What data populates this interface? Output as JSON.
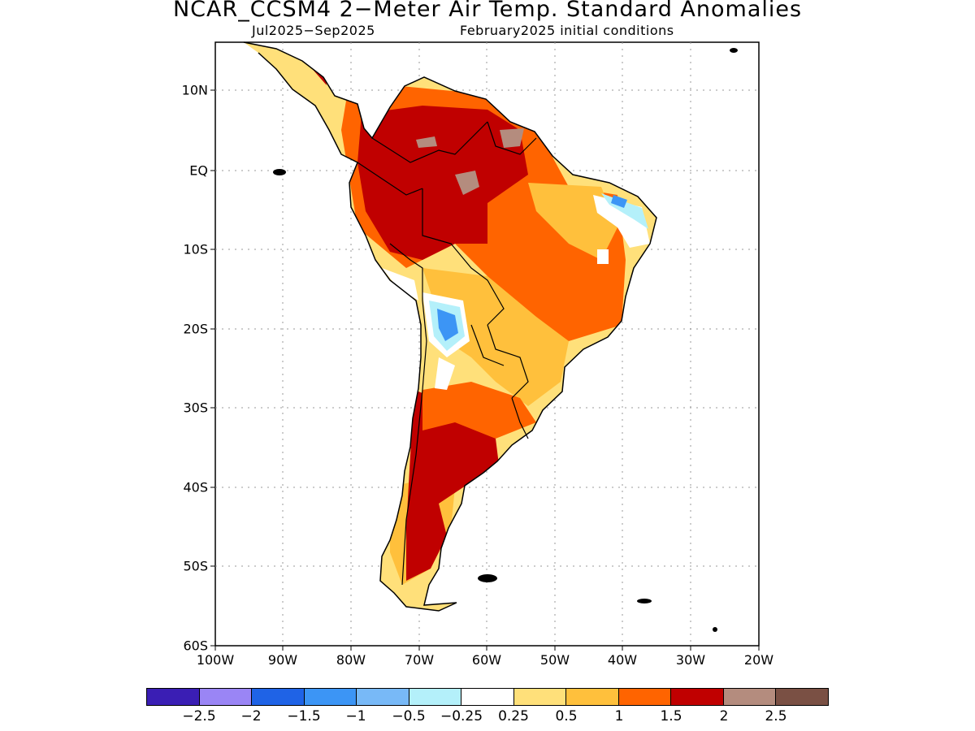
{
  "title": "NCAR_CCSM4 2−Meter Air Temp. Standard Anomalies",
  "subtitle_period": "Jul2025−Sep2025",
  "subtitle_init": "February2025 initial conditions",
  "y_axis_labels": [
    "10N",
    "EQ",
    "10S",
    "20S",
    "30S",
    "40S",
    "50S",
    "60S"
  ],
  "x_axis_labels": [
    "100W",
    "90W",
    "80W",
    "70W",
    "60W",
    "50W",
    "40W",
    "30W",
    "20W"
  ],
  "colorbar": {
    "colors": [
      "#3a1eb4",
      "#9a85f5",
      "#1f63e6",
      "#3c95f5",
      "#78b9f7",
      "#b4f0fa",
      "#ffffff",
      "#ffe07a",
      "#ffc03c",
      "#ff6400",
      "#c00000",
      "#b48c7e",
      "#7a5044"
    ],
    "labels": [
      "−2.5",
      "−2",
      "−1.5",
      "−1",
      "−0.5",
      "−0.25",
      "0.25",
      "0.5",
      "1",
      "1.5",
      "2",
      "2.5"
    ]
  },
  "map_colors": {
    "very_warm": "#c00000",
    "warm": "#ff6400",
    "mild": "#ffc03c",
    "slight": "#ffe07a",
    "extreme": "#b48c7e",
    "cool": "#3c95f5",
    "light_cool": "#b4f0fa",
    "land_outline": "#000000"
  }
}
